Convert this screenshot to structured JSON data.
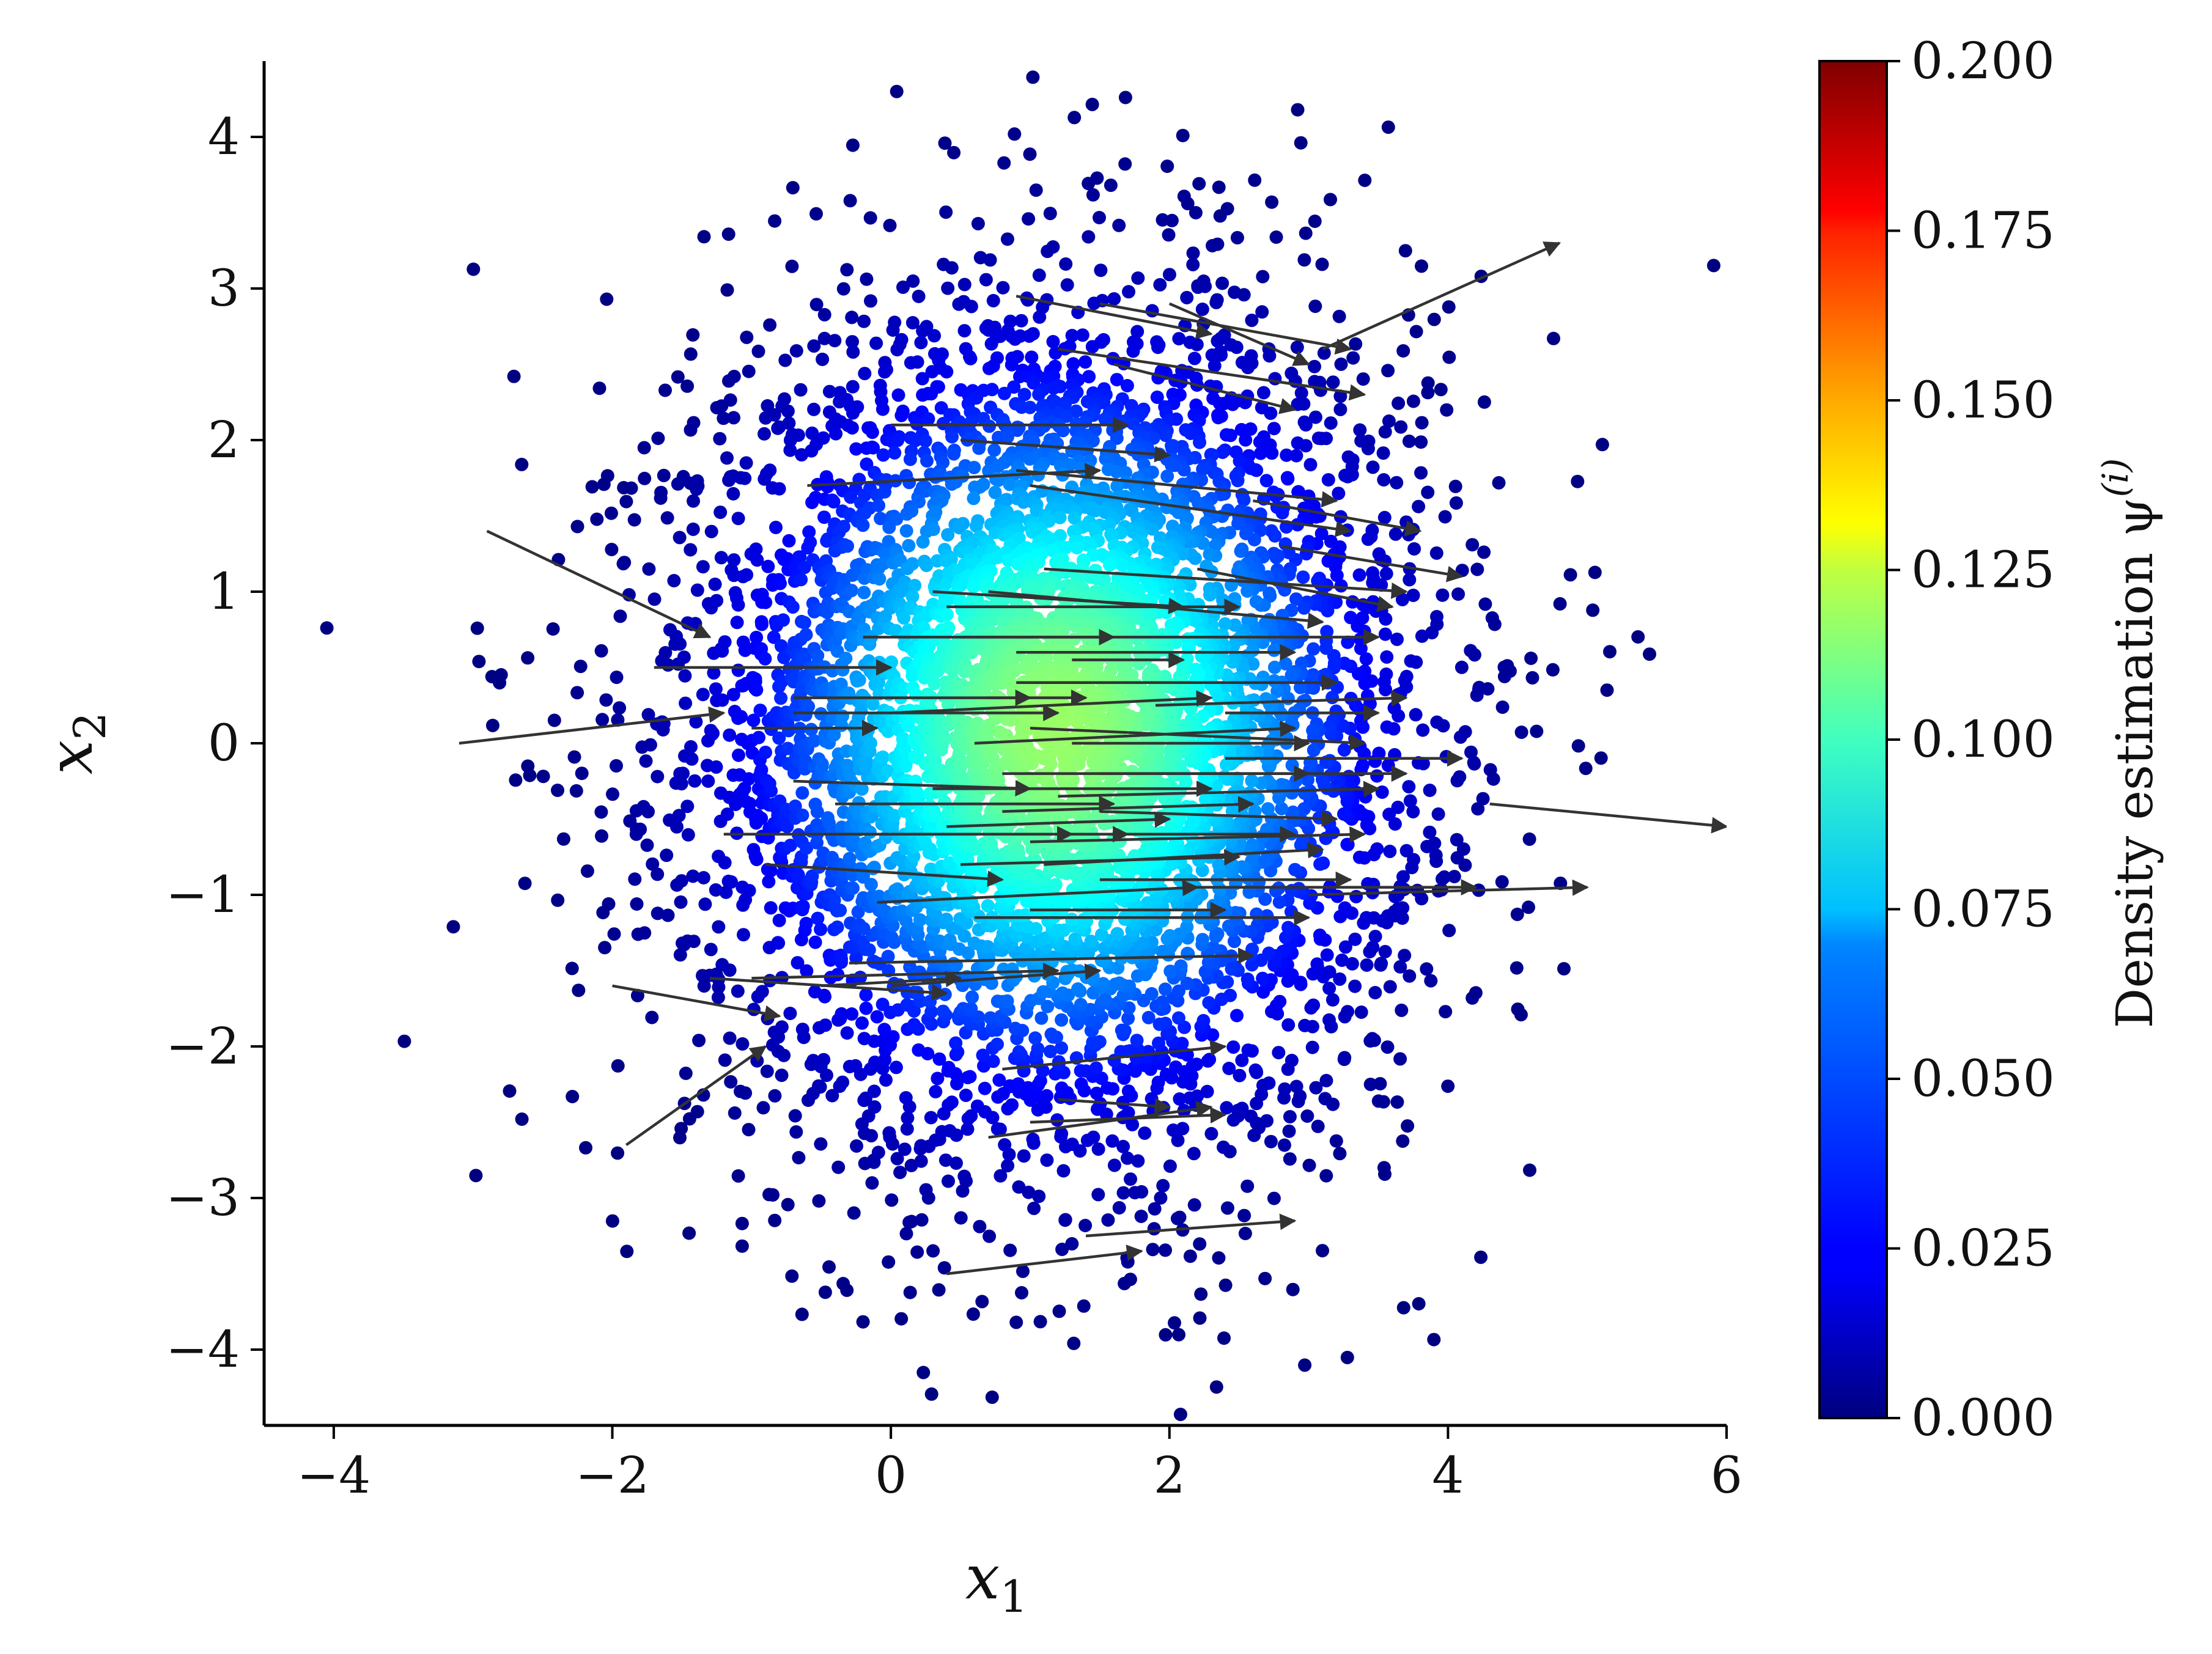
{
  "chart_data": {
    "type": "scatter",
    "title": "",
    "xlabel": "x",
    "xlabel_sub": "1",
    "ylabel": "x",
    "ylabel_sub": "2",
    "xlim": [
      -4.5,
      6
    ],
    "ylim": [
      -4.5,
      4.5
    ],
    "x_ticks": [
      {
        "value": -4,
        "label": "−4"
      },
      {
        "value": -2,
        "label": "−2"
      },
      {
        "value": 0,
        "label": "0"
      },
      {
        "value": 2,
        "label": "2"
      },
      {
        "value": 4,
        "label": "4"
      },
      {
        "value": 6,
        "label": "6"
      }
    ],
    "y_ticks": [
      {
        "value": -4,
        "label": "−4"
      },
      {
        "value": -3,
        "label": "−3"
      },
      {
        "value": -2,
        "label": "−2"
      },
      {
        "value": -1,
        "label": "−1"
      },
      {
        "value": 0,
        "label": "0"
      },
      {
        "value": 1,
        "label": "1"
      },
      {
        "value": 2,
        "label": "2"
      },
      {
        "value": 3,
        "label": "3"
      },
      {
        "value": 4,
        "label": "4"
      }
    ],
    "grid": false,
    "point_distribution": {
      "description": "approx. 2D Gaussian cloud",
      "center": [
        1.2,
        0.1
      ],
      "std": [
        1.3,
        1.4
      ],
      "count": 6000,
      "color_by": "density"
    },
    "colorbar": {
      "label": "Density estimation ψ",
      "label_superscript": "(i)",
      "colormap": "jet",
      "range": [
        0,
        0.2
      ],
      "ticks": [
        {
          "value": 0.0,
          "label": "0.000"
        },
        {
          "value": 0.025,
          "label": "0.025"
        },
        {
          "value": 0.05,
          "label": "0.050"
        },
        {
          "value": 0.075,
          "label": "0.075"
        },
        {
          "value": 0.1,
          "label": "0.100"
        },
        {
          "value": 0.125,
          "label": "0.125"
        },
        {
          "value": 0.15,
          "label": "0.150"
        },
        {
          "value": 0.175,
          "label": "0.175"
        },
        {
          "value": 0.2,
          "label": "0.200"
        }
      ]
    },
    "arrow_color": "#333333",
    "arrows": [
      [
        0.9,
        2.95,
        2.3,
        2.7
      ],
      [
        1.5,
        2.9,
        3.3,
        2.6
      ],
      [
        2.0,
        2.9,
        3.0,
        2.5
      ],
      [
        3.1,
        2.6,
        4.8,
        3.3
      ],
      [
        1.2,
        2.6,
        3.4,
        2.3
      ],
      [
        1.6,
        2.5,
        2.9,
        2.2
      ],
      [
        0.0,
        2.1,
        1.7,
        2.1
      ],
      [
        0.5,
        2.0,
        2.0,
        1.9
      ],
      [
        -0.6,
        1.7,
        1.5,
        1.8
      ],
      [
        0.9,
        1.8,
        3.2,
        1.6
      ],
      [
        1.0,
        1.7,
        3.3,
        1.4
      ],
      [
        2.6,
        1.6,
        3.8,
        1.4
      ],
      [
        2.8,
        1.3,
        4.1,
        1.1
      ],
      [
        1.1,
        1.15,
        3.7,
        1.0
      ],
      [
        2.2,
        1.15,
        3.6,
        0.9
      ],
      [
        -2.9,
        1.4,
        -1.3,
        0.7
      ],
      [
        0.3,
        1.0,
        2.1,
        0.9
      ],
      [
        0.7,
        1.0,
        3.1,
        0.8
      ],
      [
        0.4,
        0.9,
        2.5,
        0.9
      ],
      [
        -0.2,
        0.7,
        1.6,
        0.7
      ],
      [
        0.5,
        0.7,
        3.5,
        0.7
      ],
      [
        0.9,
        0.6,
        2.9,
        0.6
      ],
      [
        -1.7,
        0.5,
        0.0,
        0.5
      ],
      [
        1.3,
        0.55,
        2.1,
        0.55
      ],
      [
        0.9,
        0.4,
        3.2,
        0.4
      ],
      [
        0.7,
        0.3,
        1.4,
        0.3
      ],
      [
        -0.7,
        0.3,
        1.0,
        0.3
      ],
      [
        0.0,
        0.2,
        2.3,
        0.3
      ],
      [
        1.9,
        0.25,
        3.7,
        0.3
      ],
      [
        -0.7,
        0.2,
        1.2,
        0.2
      ],
      [
        2.4,
        0.2,
        3.5,
        0.2
      ],
      [
        1.0,
        0.1,
        3.4,
        0.0
      ],
      [
        1.3,
        0.0,
        3.0,
        0.0
      ],
      [
        -3.1,
        0.0,
        -1.2,
        0.2
      ],
      [
        -1.0,
        0.1,
        -0.1,
        0.1
      ],
      [
        0.6,
        0.0,
        2.9,
        0.1
      ],
      [
        2.4,
        -0.1,
        4.1,
        -0.1
      ],
      [
        0.8,
        -0.2,
        3.0,
        -0.2
      ],
      [
        1.5,
        -0.2,
        3.7,
        -0.2
      ],
      [
        -0.7,
        -0.25,
        1.0,
        -0.3
      ],
      [
        0.3,
        -0.3,
        2.3,
        -0.3
      ],
      [
        1.2,
        -0.35,
        3.5,
        -0.3
      ],
      [
        0.8,
        -0.45,
        2.6,
        -0.4
      ],
      [
        -0.4,
        -0.4,
        1.6,
        -0.4
      ],
      [
        1.5,
        -0.45,
        3.2,
        -0.5
      ],
      [
        0.4,
        -0.55,
        2.0,
        -0.5
      ],
      [
        4.3,
        -0.4,
        6.0,
        -0.55
      ],
      [
        1.6,
        -0.6,
        2.9,
        -0.6
      ],
      [
        -1.2,
        -0.6,
        1.3,
        -0.6
      ],
      [
        0.0,
        -0.6,
        1.7,
        -0.6
      ],
      [
        1.0,
        -0.65,
        3.4,
        -0.6
      ],
      [
        0.5,
        -0.8,
        2.5,
        -0.75
      ],
      [
        1.1,
        -0.8,
        3.1,
        -0.7
      ],
      [
        -0.9,
        -0.8,
        0.8,
        -0.9
      ],
      [
        1.5,
        -0.9,
        3.3,
        -0.9
      ],
      [
        2.2,
        -0.95,
        4.2,
        -0.95
      ],
      [
        3.0,
        -1.0,
        5.0,
        -0.95
      ],
      [
        -0.1,
        -1.05,
        2.2,
        -0.95
      ],
      [
        1.0,
        -1.1,
        2.4,
        -1.1
      ],
      [
        0.6,
        -1.15,
        3.0,
        -1.15
      ],
      [
        -1.0,
        -1.55,
        1.2,
        -1.5
      ],
      [
        -0.3,
        -1.45,
        2.6,
        -1.4
      ],
      [
        0.0,
        -1.6,
        1.5,
        -1.5
      ],
      [
        -0.5,
        -1.6,
        0.5,
        -1.55
      ],
      [
        -1.3,
        -1.55,
        0.4,
        -1.65
      ],
      [
        -2.0,
        -1.6,
        -0.8,
        -1.8
      ],
      [
        -1.9,
        -2.65,
        -0.9,
        -2.0
      ],
      [
        0.8,
        -2.15,
        2.4,
        -2.0
      ],
      [
        0.7,
        -2.6,
        2.3,
        -2.4
      ],
      [
        1.0,
        -2.5,
        2.4,
        -2.45
      ],
      [
        1.2,
        -2.35,
        2.0,
        -2.4
      ],
      [
        0.4,
        -3.5,
        1.8,
        -3.35
      ],
      [
        1.4,
        -3.25,
        2.9,
        -3.15
      ]
    ]
  }
}
